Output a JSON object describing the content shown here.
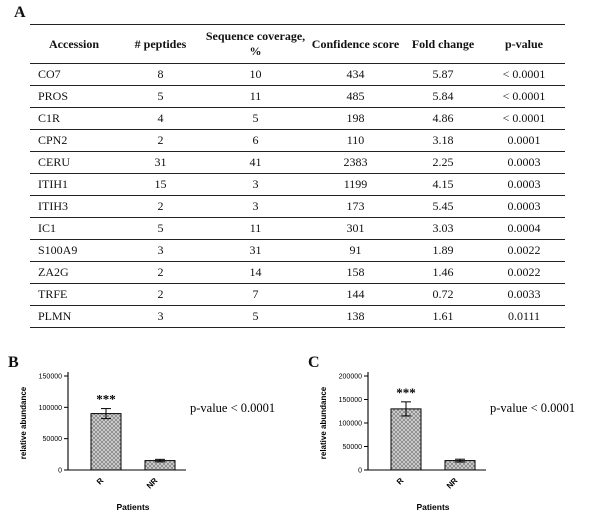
{
  "panels": {
    "a": {
      "label": "A"
    },
    "b": {
      "label": "B"
    },
    "c": {
      "label": "C"
    }
  },
  "colors": {
    "axis": "#000000",
    "bar_fill": "#d4d4d4",
    "hatch_stroke": "#7a7a7a",
    "table_rule": "#222222"
  },
  "chart_data": [
    {
      "type": "table",
      "panel": "A",
      "columns": [
        "Accession",
        "# peptides",
        "Sequence coverage, %",
        "Confidence score",
        "Fold change",
        "p-value"
      ],
      "rows": [
        [
          "CO7",
          "8",
          "10",
          "434",
          "5.87",
          "< 0.0001"
        ],
        [
          "PROS",
          "5",
          "11",
          "485",
          "5.84",
          "< 0.0001"
        ],
        [
          "C1R",
          "4",
          "5",
          "198",
          "4.86",
          "< 0.0001"
        ],
        [
          "CPN2",
          "2",
          "6",
          "110",
          "3.18",
          "0.0001"
        ],
        [
          "CERU",
          "31",
          "41",
          "2383",
          "2.25",
          "0.0003"
        ],
        [
          "ITIH1",
          "15",
          "3",
          "1199",
          "4.15",
          "0.0003"
        ],
        [
          "ITIH3",
          "2",
          "3",
          "173",
          "5.45",
          "0.0003"
        ],
        [
          "IC1",
          "5",
          "11",
          "301",
          "3.03",
          "0.0004"
        ],
        [
          "S100A9",
          "3",
          "31",
          "91",
          "1.89",
          "0.0022"
        ],
        [
          "ZA2G",
          "2",
          "14",
          "158",
          "1.46",
          "0.0022"
        ],
        [
          "TRFE",
          "2",
          "7",
          "144",
          "0.72",
          "0.0033"
        ],
        [
          "PLMN",
          "3",
          "5",
          "138",
          "1.61",
          "0.0111"
        ]
      ]
    },
    {
      "type": "bar",
      "panel": "B",
      "categories": [
        "R",
        "NR"
      ],
      "values": [
        90000,
        15000
      ],
      "errors": [
        8000,
        2000
      ],
      "ylabel": "relative abundance",
      "xlabel": "Patients",
      "ylim": [
        0,
        150000
      ],
      "ytick_step": 50000,
      "yticks": [
        0,
        50000,
        100000,
        150000
      ],
      "significance": {
        "category": "R",
        "text": "***"
      },
      "annotation": "p-value < 0.0001",
      "legend": "none",
      "grid": "off"
    },
    {
      "type": "bar",
      "panel": "C",
      "categories": [
        "R",
        "NR"
      ],
      "values": [
        130000,
        20000
      ],
      "errors": [
        15000,
        3000
      ],
      "ylabel": "relative abundance",
      "xlabel": "Patients",
      "ylim": [
        0,
        200000
      ],
      "ytick_step": 50000,
      "yticks": [
        0,
        50000,
        100000,
        150000,
        200000
      ],
      "significance": {
        "category": "R",
        "text": "***"
      },
      "annotation": "p-value < 0.0001",
      "legend": "none",
      "grid": "off"
    }
  ]
}
